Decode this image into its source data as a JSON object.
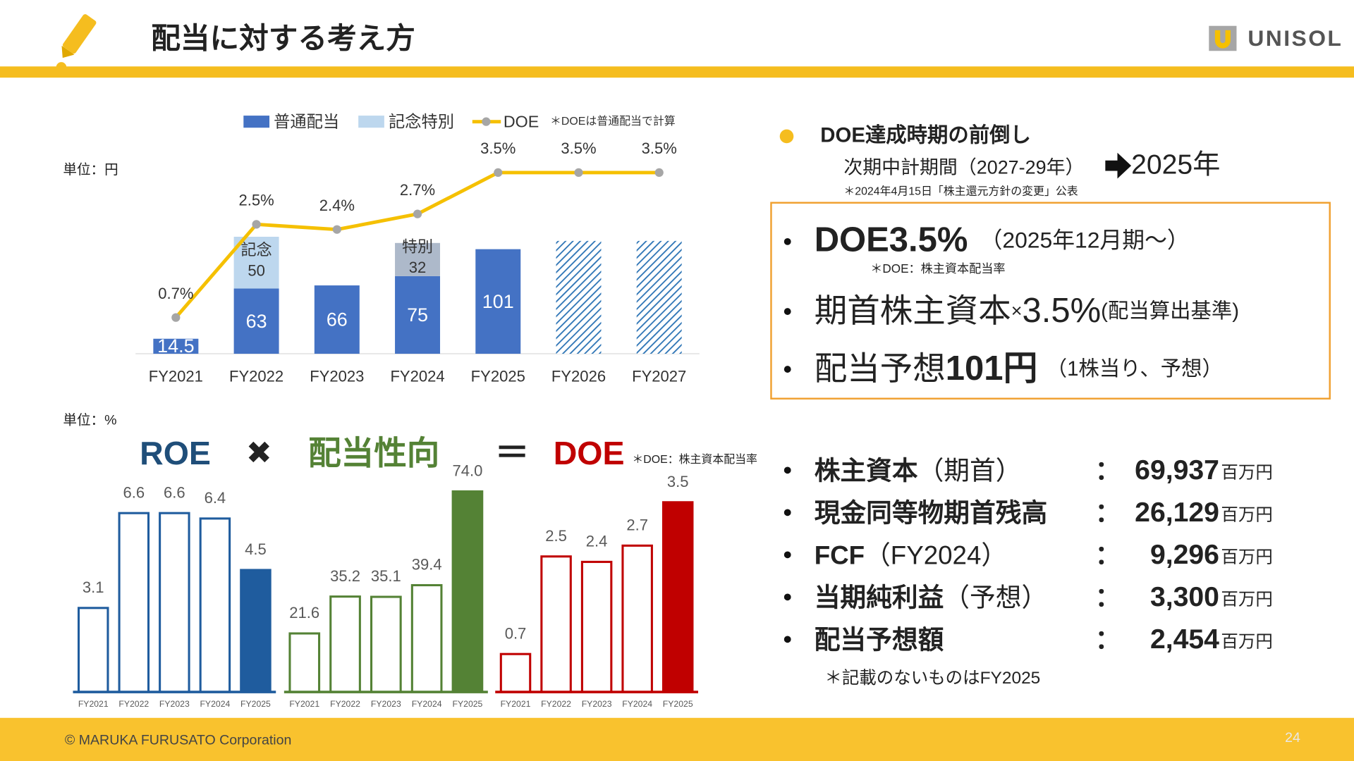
{
  "header": {
    "title": "配当に対する考え方",
    "logo": "UNISOL"
  },
  "chart_data": [
    {
      "type": "bar",
      "unit_label": "単位：円",
      "note": "＊DOEは普通配当で計算",
      "categories": [
        "FY2021",
        "FY2022",
        "FY2023",
        "FY2024",
        "FY2025",
        "FY2026",
        "FY2027"
      ],
      "series": [
        {
          "name": "普通配当",
          "color": "#4472c4",
          "label_color": "#ffffff",
          "values": [
            14.5,
            63,
            66,
            75,
            101,
            109,
            109
          ],
          "hatched": [
            false,
            false,
            false,
            false,
            false,
            true,
            true
          ]
        },
        {
          "name": "記念特別",
          "color": "#bdd7ee",
          "colors": [
            null,
            "#bdd7ee",
            null,
            "#adb9ca",
            null,
            null,
            null
          ],
          "label_color": "#333333",
          "values": [
            null,
            50,
            null,
            32,
            null,
            null,
            null
          ],
          "segment_labels": [
            null,
            "記念",
            null,
            "特別",
            null,
            null,
            null
          ]
        },
        {
          "name": "DOE",
          "type": "line",
          "axis": "y2",
          "color": "#f5c000",
          "marker_color": "#a6a6a6",
          "values": [
            0.7,
            2.5,
            2.4,
            2.7,
            3.5,
            3.5,
            3.5
          ],
          "value_labels": [
            "0.7%",
            "2.5%",
            "2.4%",
            "2.7%",
            "3.5%",
            "3.5%",
            "3.5%"
          ]
        }
      ],
      "ylim": [
        0,
        200
      ],
      "y2lim": [
        0,
        4
      ]
    },
    {
      "type": "bar",
      "title": "ROE",
      "unit_label": "単位：%",
      "categories": [
        "FY2021",
        "FY2022",
        "FY2023",
        "FY2024",
        "FY2025"
      ],
      "values": [
        3.1,
        6.6,
        6.6,
        6.4,
        4.5
      ],
      "color": "#1f5c9e",
      "title_color": "#1f4e79",
      "filled": [
        false,
        false,
        false,
        false,
        true
      ],
      "ylim": [
        0,
        8.5
      ]
    },
    {
      "type": "bar",
      "title": "配当性向",
      "categories": [
        "FY2021",
        "FY2022",
        "FY2023",
        "FY2024",
        "FY2025"
      ],
      "values": [
        21.6,
        35.2,
        35.1,
        39.4,
        74.0
      ],
      "value_labels": [
        "21.6",
        "35.2",
        "35.1",
        "39.4",
        "74.0"
      ],
      "color": "#548235",
      "title_color": "#548235",
      "filled": [
        false,
        false,
        false,
        false,
        true
      ],
      "ylim": [
        0,
        85
      ]
    },
    {
      "type": "bar",
      "title": "DOE",
      "note": "＊DOE：株主資本配当率",
      "categories": [
        "FY2021",
        "FY2022",
        "FY2023",
        "FY2024",
        "FY2025"
      ],
      "values": [
        0.7,
        2.5,
        2.4,
        2.7,
        3.5
      ],
      "color": "#c00000",
      "title_color": "#c00000",
      "filled": [
        false,
        false,
        false,
        false,
        true
      ],
      "ylim": [
        0,
        4.25
      ]
    }
  ],
  "formula": {
    "times": "✖",
    "equals": "＝"
  },
  "policy": {
    "heading": "DOE達成時期の前倒し",
    "from": "次期中計期間（2027-29年）",
    "to": "2025年",
    "note": "＊2024年4月15日「株主還元方針の変更」公表"
  },
  "highlights": [
    {
      "main": "DOE3.5%",
      "detail": "（2025年12月期～）",
      "note": "＊DOE：株主資本配当率"
    },
    {
      "main": "期首株主資本",
      "operator": "×",
      "rate": "3.5%",
      "detail": "(配当算出基準)"
    },
    {
      "main": "配当予想",
      "amount": "101円",
      "detail": "（1株当り、予想）"
    }
  ],
  "metrics": {
    "separator": "：",
    "unit": "百万円",
    "rows": [
      {
        "label": "株主資本",
        "qualifier": "（期首）",
        "value": "69,937"
      },
      {
        "label": "現金同等物期首残高",
        "value": "26,129"
      },
      {
        "label": "FCF",
        "qualifier": "（FY2024）",
        "value": "9,296"
      },
      {
        "label": "当期純利益",
        "qualifier": "（予想）",
        "value": "3,300"
      },
      {
        "label": "配当予想額",
        "value": "2,454"
      }
    ],
    "note": "＊記載のないものはFY2025"
  },
  "footer": {
    "copyright": "© MARUKA FURUSATO Corporation",
    "page": 24
  }
}
